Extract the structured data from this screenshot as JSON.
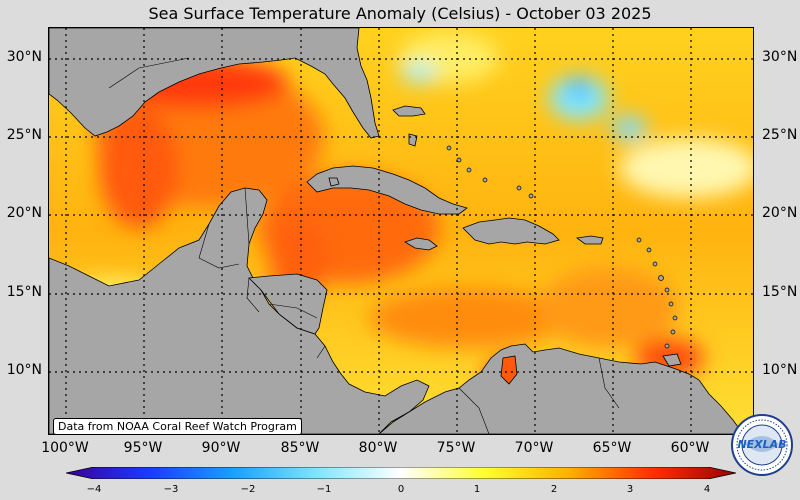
{
  "title": "Sea Surface Temperature Anomaly (Celsius) - October 03 2025",
  "credit": "Data from NOAA Coral Reef Watch Program",
  "logo_text": "NEXLAB",
  "lat_labels": [
    "30°N",
    "25°N",
    "20°N",
    "15°N",
    "10°N"
  ],
  "lon_labels": [
    "100°W",
    "95°W",
    "90°W",
    "85°W",
    "80°W",
    "75°W",
    "70°W",
    "65°W",
    "60°W"
  ],
  "colorbar": {
    "min": -4,
    "max": 4,
    "ticks": [
      "−4",
      "−3",
      "−2",
      "−1",
      "0",
      "1",
      "2",
      "3",
      "4"
    ],
    "colors": [
      "#3a0096",
      "#1a3cff",
      "#1aa0ff",
      "#7fe6ff",
      "#ffffff",
      "#ffff33",
      "#ffb000",
      "#ff3000",
      "#990000"
    ]
  },
  "colors": {
    "land": "#a6a6a6",
    "ocean_warm": "#ffcc22",
    "ocean_hot": "#ff6a10",
    "background": "#dcdcdc"
  }
}
